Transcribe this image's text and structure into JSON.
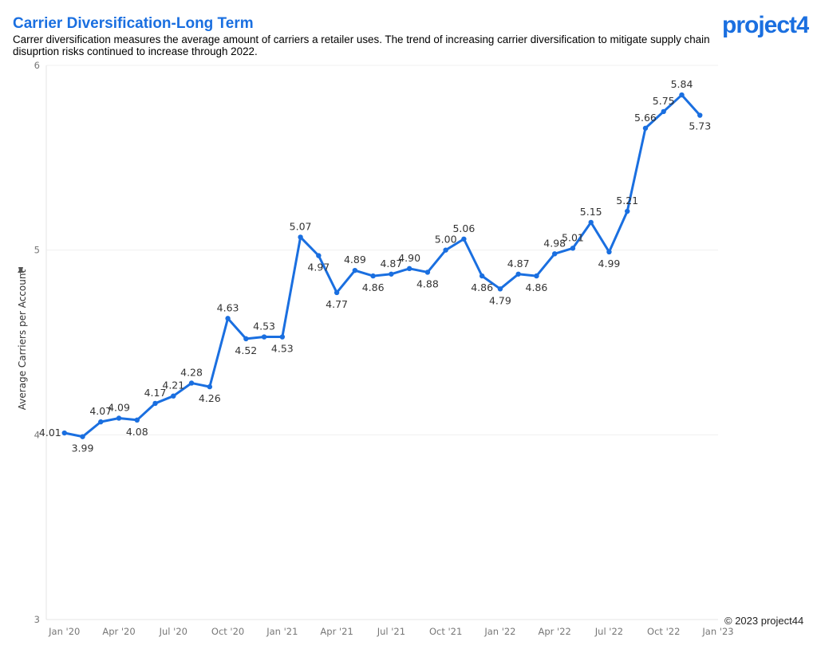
{
  "header": {
    "title": "Carrier Diversification-Long Term",
    "subtitle": "Carrer diversification measures the average amount of carriers a retailer uses. The trend of increasing carrier diversification to mitigate supply chain disuprtion risks continued to increase through 2022."
  },
  "brand": {
    "logo_text": "project44",
    "logo_icon": "project44-logo",
    "accent": "#1a6fe0"
  },
  "footer": {
    "copyright": "© 2023 project44"
  },
  "chart_data": {
    "type": "line",
    "title": "Carrier Diversification-Long Term",
    "ylabel": "Average Carriers per Account",
    "ylabel_icon": "pin-icon",
    "xlabel": "",
    "ylim": [
      3,
      6
    ],
    "yticks": [
      3,
      4,
      5,
      6
    ],
    "xlim": [
      "2019-12",
      "2023-01"
    ],
    "xticks": [
      "Jan '20",
      "Apr '20",
      "Jul '20",
      "Oct '20",
      "Jan '21",
      "Apr '21",
      "Jul '21",
      "Oct '21",
      "Jan '22",
      "Apr '22",
      "Jul '22",
      "Oct '22",
      "Jan '23"
    ],
    "grid": true,
    "line_color": "#1a6fe0",
    "x": [
      "2020-01",
      "2020-02",
      "2020-03",
      "2020-04",
      "2020-05",
      "2020-06",
      "2020-07",
      "2020-08",
      "2020-09",
      "2020-10",
      "2020-11",
      "2020-12",
      "2021-01",
      "2021-02",
      "2021-03",
      "2021-04",
      "2021-05",
      "2021-06",
      "2021-07",
      "2021-08",
      "2021-09",
      "2021-10",
      "2021-11",
      "2021-12",
      "2022-01",
      "2022-02",
      "2022-03",
      "2022-04",
      "2022-05",
      "2022-06",
      "2022-07",
      "2022-08",
      "2022-09",
      "2022-10",
      "2022-11",
      "2022-12"
    ],
    "values": [
      4.01,
      3.99,
      4.07,
      4.09,
      4.08,
      4.17,
      4.21,
      4.28,
      4.26,
      4.63,
      4.52,
      4.53,
      4.53,
      5.07,
      4.97,
      4.77,
      4.89,
      4.86,
      4.87,
      4.9,
      4.88,
      5.0,
      5.06,
      4.86,
      4.79,
      4.87,
      4.86,
      4.98,
      5.01,
      5.15,
      4.99,
      5.21,
      5.66,
      5.75,
      5.84,
      5.73
    ],
    "labels": [
      "4.01",
      "3.99",
      "4.07",
      "4.09",
      "4.08",
      "4.17",
      "4.21",
      "4.28",
      "4.26",
      "4.63",
      "4.52",
      "4.53",
      "4.53",
      "5.07",
      "4.97",
      "4.77",
      "4.89",
      "4.86",
      "4.87",
      "4.90",
      "4.88",
      "5.00",
      "5.06",
      "4.86",
      "4.79",
      "4.87",
      "4.86",
      "4.98",
      "5.01",
      "5.15",
      "4.99",
      "5.21",
      "5.66",
      "5.75",
      "5.84",
      "5.73"
    ]
  }
}
